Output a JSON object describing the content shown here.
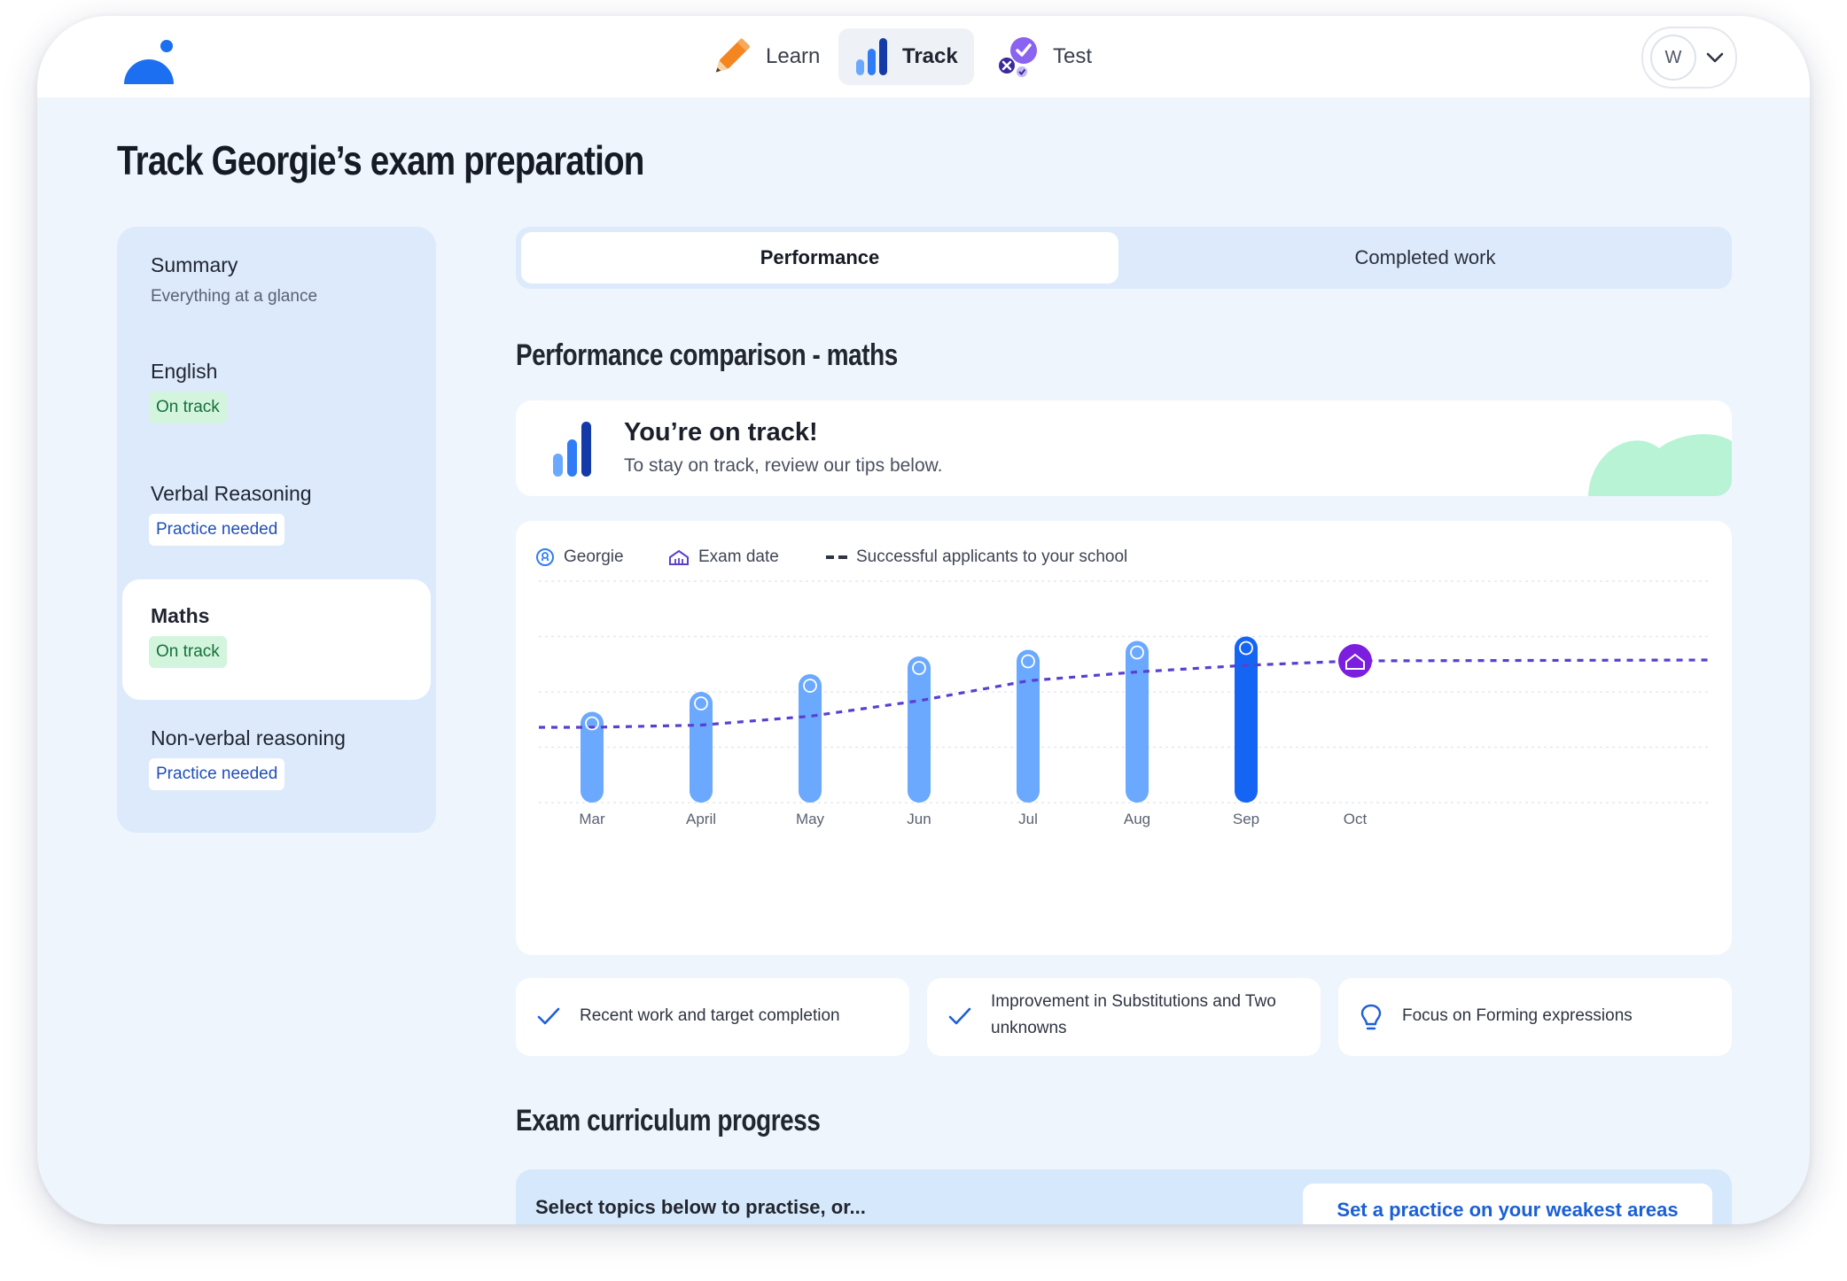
{
  "nav": {
    "items": [
      {
        "label": "Learn",
        "icon": "pencil-icon"
      },
      {
        "label": "Track",
        "icon": "bar-chart-icon",
        "active": true
      },
      {
        "label": "Test",
        "icon": "test-check-icon"
      }
    ],
    "user_initial": "W"
  },
  "page": {
    "title": "Track Georgie’s exam preparation"
  },
  "sidebar": {
    "summary": {
      "title": "Summary",
      "subtitle": "Everything at a glance"
    },
    "subjects": [
      {
        "title": "English",
        "status": "On track"
      },
      {
        "title": "Verbal Reasoning",
        "status": "Practice needed"
      },
      {
        "title": "Maths",
        "status": "On track",
        "active": true
      },
      {
        "title": "Non-verbal reasoning",
        "status": "Practice needed"
      }
    ]
  },
  "tabs": {
    "performance": "Performance",
    "completed": "Completed work"
  },
  "performance": {
    "title": "Performance comparison - maths",
    "status_heading": "You’re on track!",
    "status_sub": "To stay on track, review our tips below."
  },
  "legend": {
    "georgie": "Georgie",
    "exam": "Exam date",
    "applicants": "Successful applicants to your school"
  },
  "chart_data": {
    "type": "bar",
    "categories": [
      "Mar",
      "April",
      "May",
      "Jun",
      "Jul",
      "Aug",
      "Sep",
      "Oct"
    ],
    "series": [
      {
        "name": "Georgie",
        "values": [
          41,
          50,
          58,
          66,
          69,
          73,
          75,
          null
        ]
      },
      {
        "name": "Successful applicants to your school",
        "values": [
          34,
          35,
          39,
          46,
          55,
          59,
          62,
          64
        ]
      }
    ],
    "exam_marker": "Oct",
    "colors": {
      "bar": "#6aa9ff",
      "current_bar": "#1565f5",
      "line": "#5a3fd1",
      "exam": "#7b1ee0"
    },
    "grid": true
  },
  "tips": [
    {
      "icon": "check-icon",
      "text": "Recent work and target completion"
    },
    {
      "icon": "check-icon",
      "text": "Improvement in Substitutions and Two unknowns"
    },
    {
      "icon": "lightbulb-icon",
      "text": "Focus on Forming expressions"
    }
  ],
  "curriculum": {
    "title": "Exam curriculum progress",
    "prompt": "Select topics below to practise, or...",
    "button": "Set a practice on your weakest areas"
  }
}
